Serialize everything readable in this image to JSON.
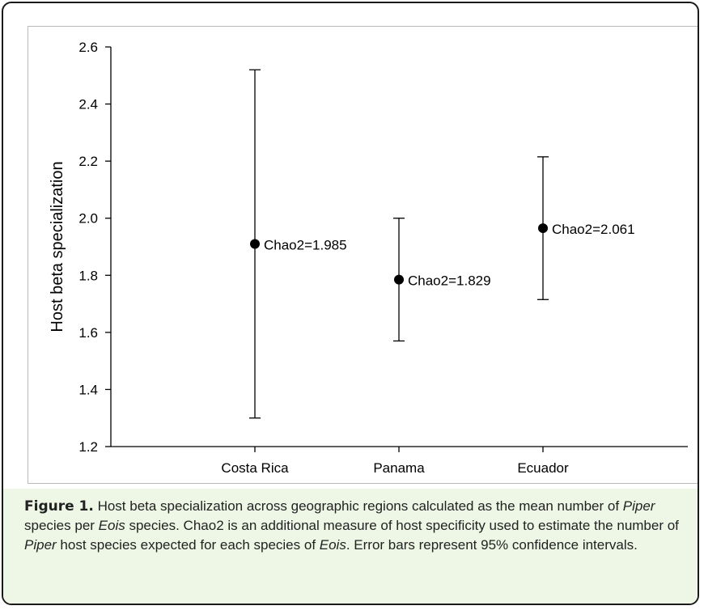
{
  "chart_data": {
    "type": "scatter",
    "ylabel": "Host beta specialization",
    "xlabel": "",
    "title": "",
    "categories": [
      "Costa Rica",
      "Panama",
      "Ecuador"
    ],
    "points": [
      {
        "category": "Costa Rica",
        "mean": 1.91,
        "lower": 1.3,
        "upper": 2.52,
        "label": "Chao2=1.985"
      },
      {
        "category": "Panama",
        "mean": 1.785,
        "lower": 1.57,
        "upper": 2.0,
        "label": "Chao2=1.829"
      },
      {
        "category": "Ecuador",
        "mean": 1.965,
        "lower": 1.715,
        "upper": 2.215,
        "label": "Chao2=2.061"
      }
    ],
    "ylim": [
      1.2,
      2.6
    ],
    "yticks": [
      "1.2",
      "1.4",
      "1.6",
      "1.8",
      "2.0",
      "2.2",
      "2.4",
      "2.6"
    ],
    "grid": false,
    "error_bars": "95% confidence intervals",
    "colors": {
      "marker": "#000000",
      "axis": "#000000",
      "caption_bg": "#eef7e6"
    }
  },
  "caption": {
    "label": "Figure 1.",
    "text_1": " Host beta specialization across geographic regions calculated as the mean number of ",
    "italic_1": "Piper",
    "text_2": " species per ",
    "italic_2": "Eois",
    "text_3": " species. Chao2 is an additional measure of host specificity used to estimate the number of ",
    "italic_3": "Piper",
    "text_4": " host species expected for each species of ",
    "italic_4": "Eois",
    "text_5": ". Error bars represent 95% confidence intervals."
  }
}
